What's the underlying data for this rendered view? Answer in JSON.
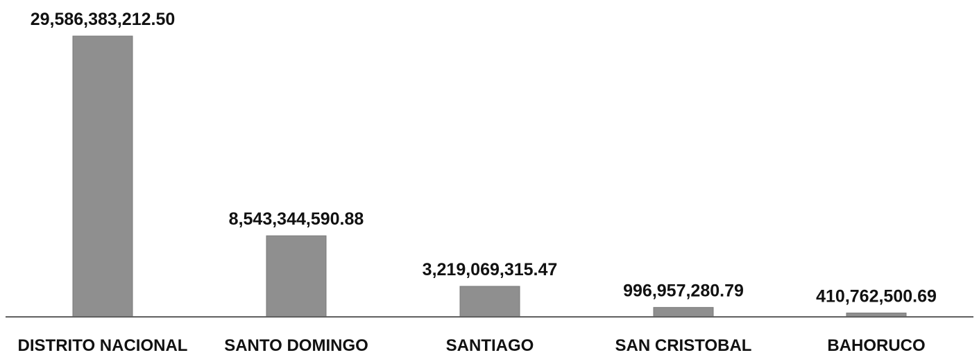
{
  "chart_data": {
    "type": "bar",
    "categories": [
      "DISTRITO NACIONAL",
      "SANTO DOMINGO",
      "SANTIAGO",
      "SAN CRISTOBAL",
      "BAHORUCO"
    ],
    "values": [
      29586383212.5,
      8543344590.88,
      3219069315.47,
      996957280.79,
      410762500.69
    ],
    "value_labels": [
      "29,586,383,212.50",
      "8,543,344,590.88",
      "3,219,069,315.47",
      "996,957,280.79",
      "410,762,500.69"
    ],
    "title": "",
    "xlabel": "",
    "ylabel": "",
    "grid": false,
    "legend": "none",
    "bar_color": "#8f8f8f",
    "axis_color": "#5f5f5f",
    "text_color": "#111111"
  }
}
